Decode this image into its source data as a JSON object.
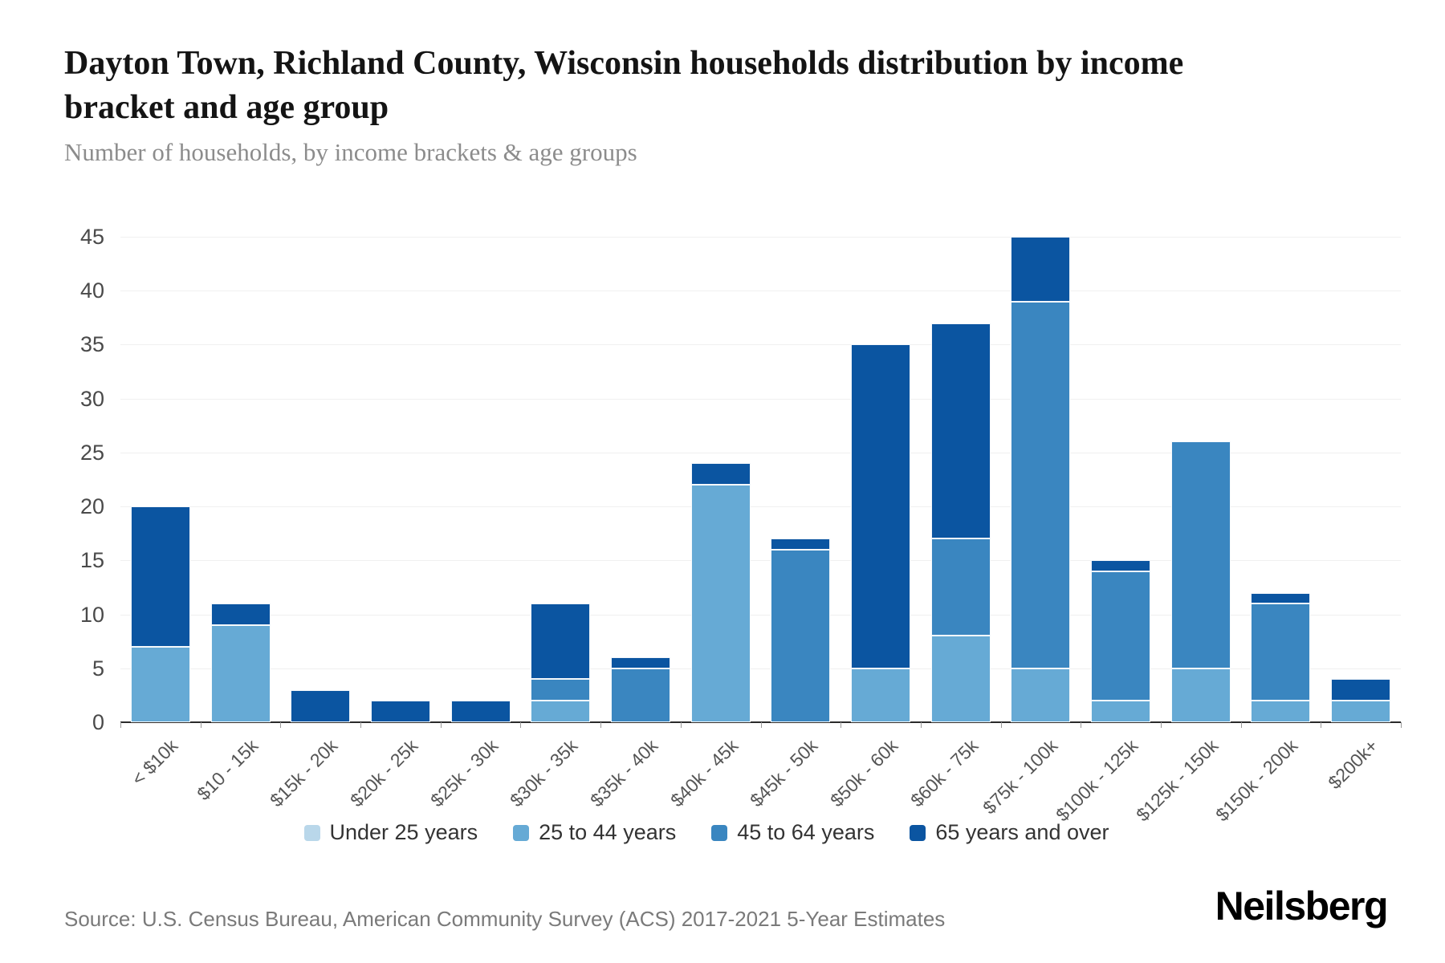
{
  "header": {
    "title": "Dayton Town, Richland County, Wisconsin households distribution by income bracket and age group",
    "subtitle": "Number of households, by income brackets & age groups"
  },
  "footer": {
    "source": "Source: U.S. Census Bureau, American Community Survey (ACS) 2017-2021 5-Year Estimates",
    "brand": "Neilsberg"
  },
  "colors": {
    "under_25": "#b9d7ea",
    "age_25_44": "#66aad5",
    "age_45_64": "#3a86c0",
    "age_65_over": "#0b55a1",
    "gridline": "#f0f0f0",
    "axis_line": "#2b2b2b"
  },
  "chart_data": {
    "type": "bar",
    "stacked": true,
    "title": "Dayton Town, Richland County, Wisconsin households distribution by income bracket and age group",
    "subtitle": "Number of households, by income brackets & age groups",
    "xlabel": "",
    "ylabel": "",
    "ylim": [
      0,
      45
    ],
    "yticks": [
      0,
      5,
      10,
      15,
      20,
      25,
      30,
      35,
      40,
      45
    ],
    "grid": "horizontal",
    "legend_position": "bottom",
    "categories": [
      "< $10k",
      "$10 - 15k",
      "$15k - 20k",
      "$20k - 25k",
      "$25k - 30k",
      "$30k - 35k",
      "$35k - 40k",
      "$40k - 45k",
      "$45k - 50k",
      "$50k - 60k",
      "$60k - 75k",
      "$75k - 100k",
      "$100k - 125k",
      "$125k - 150k",
      "$150k - 200k",
      "$200k+"
    ],
    "series": [
      {
        "name": "Under 25 years",
        "color": "#b9d7ea",
        "values": [
          0,
          0,
          0,
          0,
          0,
          0,
          0,
          0,
          0,
          0,
          0,
          0,
          0,
          0,
          0,
          0
        ]
      },
      {
        "name": "25 to 44 years",
        "color": "#66aad5",
        "values": [
          7,
          9,
          0,
          0,
          0,
          2,
          0,
          22,
          0,
          5,
          8,
          5,
          2,
          5,
          2,
          2
        ]
      },
      {
        "name": "45 to 64 years",
        "color": "#3a86c0",
        "values": [
          0,
          0,
          0,
          0,
          0,
          2,
          5,
          0,
          16,
          0,
          9,
          34,
          12,
          21,
          9,
          0
        ]
      },
      {
        "name": "65 years and over",
        "color": "#0b55a1",
        "values": [
          13,
          2,
          3,
          2,
          2,
          7,
          1,
          2,
          1,
          30,
          20,
          6,
          1,
          0,
          1,
          2
        ]
      }
    ],
    "totals": [
      20,
      11,
      3,
      2,
      2,
      11,
      6,
      24,
      17,
      35,
      37,
      45,
      15,
      26,
      12,
      4
    ]
  }
}
